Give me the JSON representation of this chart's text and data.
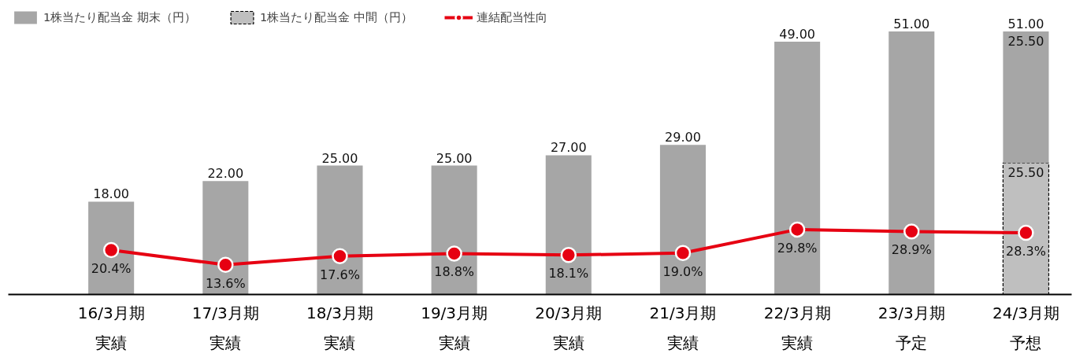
{
  "chart_data": {
    "type": "bar",
    "stacked": true,
    "categories": [
      "16/3月期実績",
      "17/3月期実績",
      "18/3月期実績",
      "19/3月期実績",
      "20/3月期実績",
      "21/3月期実績",
      "22/3月期実績",
      "23/3月期予定",
      "24/3月期予想"
    ],
    "series": [
      {
        "name": "1株当たり配当金 中間（円）",
        "color": "#bfbfbf",
        "line_style": "dashed",
        "values": [
          null,
          null,
          null,
          null,
          null,
          null,
          null,
          null,
          25.5
        ],
        "value_labels": [
          null,
          null,
          null,
          null,
          null,
          null,
          null,
          null,
          "25.50"
        ]
      },
      {
        "name": "1株当たり配当金 期末（円）",
        "color": "#a6a6a6",
        "values": [
          18,
          22,
          25,
          25,
          27,
          29,
          49,
          51,
          25.5
        ],
        "value_labels": [
          "18.00",
          "22.00",
          "25.00",
          "25.00",
          "27.00",
          "29.00",
          "49.00",
          "51.00",
          "25.50"
        ]
      },
      {
        "name": "連結配当性向",
        "type": "line",
        "axis": "y2",
        "color": "#e60012",
        "marker": "circle",
        "line_style": "solid",
        "values": [
          20.4,
          13.6,
          17.6,
          18.8,
          18.1,
          19.0,
          29.8,
          28.9,
          28.3
        ],
        "value_labels": [
          "20.4%",
          "13.6%",
          "17.6%",
          "18.8%",
          "18.1%",
          "19.0%",
          "29.8%",
          "28.9%",
          "28.3%"
        ]
      }
    ],
    "totals": [
      null,
      null,
      null,
      null,
      null,
      null,
      null,
      null,
      "51.00"
    ],
    "tick_labels": "x",
    "grid": false,
    "legend": "top left"
  }
}
